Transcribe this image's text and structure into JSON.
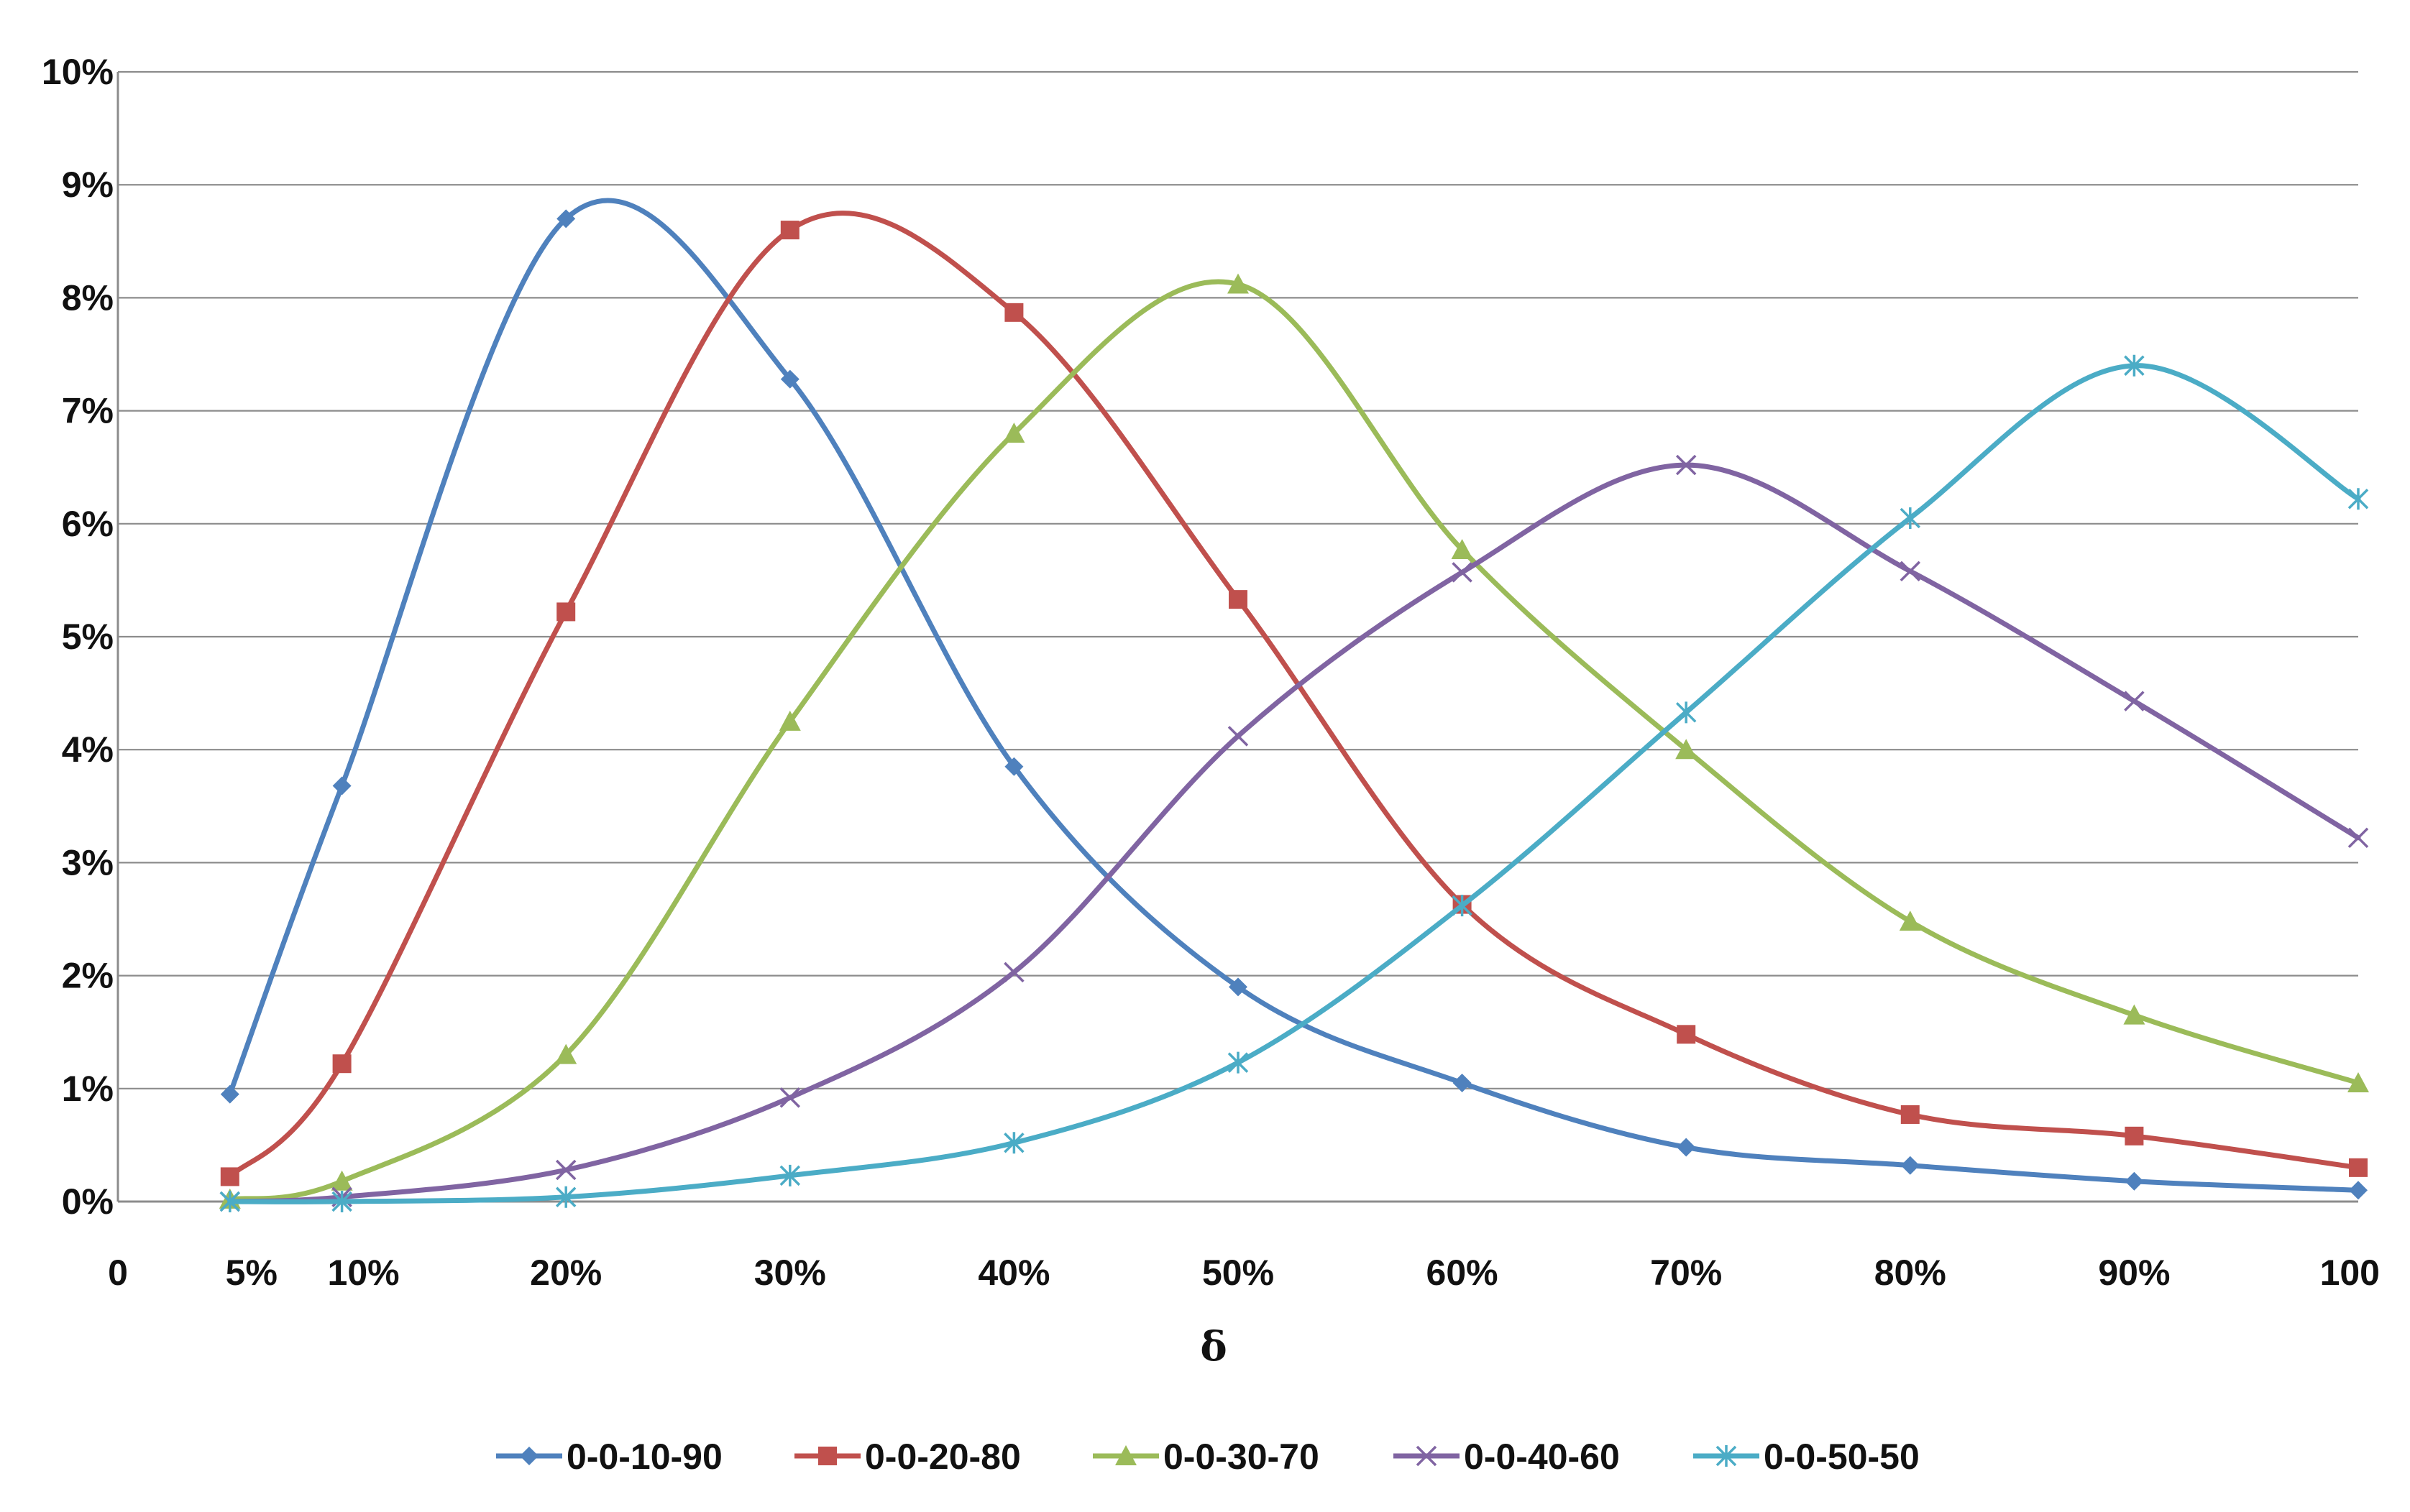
{
  "chart_data": {
    "type": "line",
    "title": "",
    "xlabel": "δ",
    "ylabel": "",
    "ylim": [
      0,
      10
    ],
    "y_ticks": [
      "0%",
      "1%",
      "2%",
      "3%",
      "4%",
      "5%",
      "6%",
      "7%",
      "8%",
      "9%",
      "10%"
    ],
    "x_ticks": [
      "0",
      "5%",
      "10%",
      "20%",
      "30%",
      "40%",
      "50%",
      "60%",
      "70%",
      "80%",
      "90%",
      "100"
    ],
    "x_tick_values": [
      0,
      5,
      10,
      20,
      30,
      40,
      50,
      60,
      70,
      80,
      90,
      100
    ],
    "xlim": [
      0,
      100
    ],
    "grid": true,
    "legend_position": "bottom",
    "x": [
      5,
      10,
      20,
      30,
      40,
      50,
      60,
      70,
      80,
      90,
      100
    ],
    "series": [
      {
        "name": "0-0-10-90",
        "color": "#4f81bd",
        "marker": "diamond",
        "values": [
          0.95,
          3.68,
          8.7,
          7.28,
          3.85,
          1.9,
          1.05,
          0.48,
          0.32,
          0.18,
          0.1
        ]
      },
      {
        "name": "0-0-20-80",
        "color": "#c0504d",
        "marker": "square",
        "values": [
          0.22,
          1.22,
          5.22,
          8.6,
          7.87,
          5.33,
          2.63,
          1.48,
          0.77,
          0.58,
          0.3
        ]
      },
      {
        "name": "0-0-30-70",
        "color": "#9bbb59",
        "marker": "triangle",
        "values": [
          0.02,
          0.18,
          1.3,
          4.25,
          6.8,
          8.12,
          5.77,
          4.0,
          2.48,
          1.65,
          1.05
        ]
      },
      {
        "name": "0-0-40-60",
        "color": "#8064a2",
        "marker": "x",
        "values": [
          0.0,
          0.04,
          0.28,
          0.92,
          2.03,
          4.12,
          5.57,
          6.52,
          5.58,
          4.43,
          3.22
        ]
      },
      {
        "name": "0-0-50-50",
        "color": "#4bacc6",
        "marker": "asterisk",
        "values": [
          0.0,
          0.0,
          0.04,
          0.23,
          0.52,
          1.23,
          2.62,
          4.33,
          6.05,
          7.4,
          6.22
        ]
      }
    ]
  }
}
